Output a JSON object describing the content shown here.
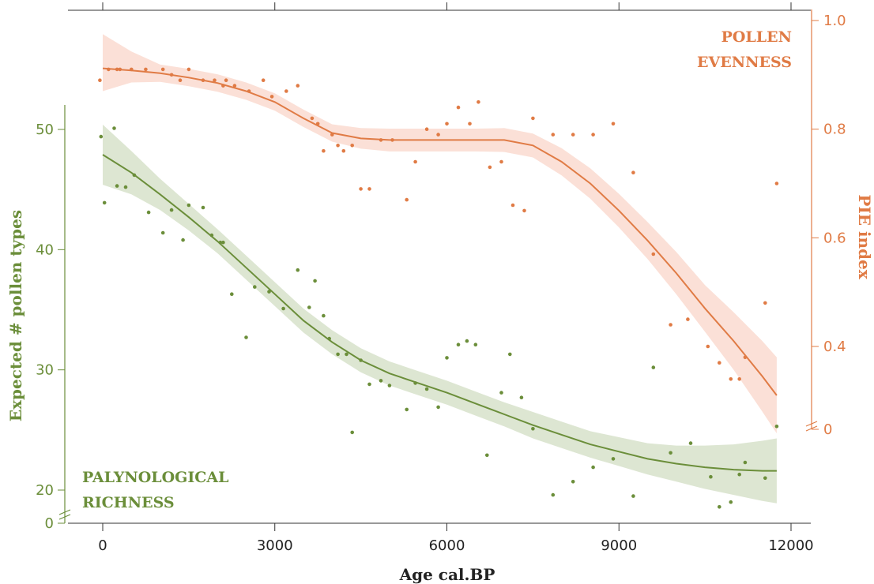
{
  "chart_data": {
    "type": "scatter",
    "x_axis": {
      "label": "Age cal.BP",
      "range": [
        -300,
        12300
      ],
      "ticks": [
        0,
        3000,
        6000,
        9000,
        12000
      ],
      "tick_labels": [
        "0",
        "3000",
        "6000",
        "9000",
        "12000"
      ]
    },
    "y_left": {
      "label": "Expected # pollen types",
      "range": [
        19,
        52
      ],
      "ticks": [
        20,
        30,
        40,
        50
      ],
      "tick_labels": [
        "20",
        "30",
        "40",
        "50"
      ],
      "break_label": "0",
      "color": "#6b8e3a"
    },
    "y_right": {
      "label": "PIE index",
      "range": [
        0.3,
        1.0
      ],
      "ticks": [
        0.4,
        0.6,
        0.8,
        1.0
      ],
      "tick_labels": [
        "0.4",
        "0.6",
        "0.8",
        "1.0"
      ],
      "break_label": "0",
      "color": "#e07b45"
    },
    "series": [
      {
        "name": "PALYNOLOGICAL RICHNESS",
        "name_lines": [
          "PALYNOLOGICAL",
          "RICHNESS"
        ],
        "axis": "left",
        "color": "#6b8e3a",
        "band_color": "#dde6d2",
        "points": [
          [
            -30,
            49.4
          ],
          [
            30,
            43.9
          ],
          [
            200,
            50.1
          ],
          [
            250,
            45.3
          ],
          [
            400,
            45.2
          ],
          [
            550,
            46.2
          ],
          [
            800,
            43.1
          ],
          [
            1050,
            41.4
          ],
          [
            1200,
            43.3
          ],
          [
            1400,
            40.8
          ],
          [
            1500,
            43.7
          ],
          [
            1750,
            43.5
          ],
          [
            1900,
            41.2
          ],
          [
            2050,
            40.6
          ],
          [
            2100,
            40.6
          ],
          [
            2250,
            36.3
          ],
          [
            2500,
            32.7
          ],
          [
            2650,
            36.9
          ],
          [
            2900,
            36.5
          ],
          [
            3150,
            35.1
          ],
          [
            3400,
            38.3
          ],
          [
            3600,
            35.2
          ],
          [
            3700,
            37.4
          ],
          [
            3850,
            34.5
          ],
          [
            3950,
            32.6
          ],
          [
            4100,
            31.3
          ],
          [
            4250,
            31.3
          ],
          [
            4350,
            24.8
          ],
          [
            4500,
            30.8
          ],
          [
            4650,
            28.8
          ],
          [
            4850,
            29.1
          ],
          [
            5000,
            28.7
          ],
          [
            5300,
            26.7
          ],
          [
            5450,
            28.9
          ],
          [
            5650,
            28.4
          ],
          [
            5850,
            26.9
          ],
          [
            6000,
            31.0
          ],
          [
            6200,
            32.1
          ],
          [
            6350,
            32.4
          ],
          [
            6500,
            32.1
          ],
          [
            6700,
            22.9
          ],
          [
            6950,
            28.1
          ],
          [
            7100,
            31.3
          ],
          [
            7300,
            27.7
          ],
          [
            7500,
            25.1
          ],
          [
            7850,
            19.6
          ],
          [
            8200,
            20.7
          ],
          [
            8550,
            21.9
          ],
          [
            8900,
            22.6
          ],
          [
            9250,
            19.5
          ],
          [
            9600,
            30.2
          ],
          [
            9900,
            23.1
          ],
          [
            10250,
            23.9
          ],
          [
            10600,
            21.1
          ],
          [
            10750,
            18.6
          ],
          [
            10950,
            19.0
          ],
          [
            11100,
            21.3
          ],
          [
            11200,
            22.3
          ],
          [
            11550,
            21.0
          ],
          [
            11750,
            25.3
          ]
        ],
        "fit": [
          [
            0,
            47.9
          ],
          [
            500,
            46.4
          ],
          [
            1000,
            44.6
          ],
          [
            1500,
            42.7
          ],
          [
            2000,
            40.7
          ],
          [
            2500,
            38.5
          ],
          [
            3000,
            36.3
          ],
          [
            3500,
            34.1
          ],
          [
            4000,
            32.3
          ],
          [
            4500,
            30.8
          ],
          [
            5000,
            29.7
          ],
          [
            5500,
            28.9
          ],
          [
            6000,
            28.1
          ],
          [
            6500,
            27.2
          ],
          [
            7000,
            26.3
          ],
          [
            7500,
            25.4
          ],
          [
            8000,
            24.6
          ],
          [
            8500,
            23.8
          ],
          [
            9000,
            23.2
          ],
          [
            9500,
            22.6
          ],
          [
            10000,
            22.2
          ],
          [
            10500,
            21.9
          ],
          [
            11000,
            21.7
          ],
          [
            11500,
            21.6
          ],
          [
            11750,
            21.6
          ]
        ],
        "band": [
          [
            0,
            45.4,
            50.4
          ],
          [
            500,
            44.6,
            48.2
          ],
          [
            1000,
            43.3,
            45.9
          ],
          [
            1500,
            41.6,
            43.8
          ],
          [
            2000,
            39.7,
            41.7
          ],
          [
            2500,
            37.5,
            39.5
          ],
          [
            3000,
            35.3,
            37.3
          ],
          [
            3500,
            33.1,
            35.1
          ],
          [
            4000,
            31.3,
            33.3
          ],
          [
            4500,
            29.8,
            31.8
          ],
          [
            5000,
            28.7,
            30.7
          ],
          [
            5500,
            27.9,
            29.9
          ],
          [
            6000,
            27.1,
            29.1
          ],
          [
            6500,
            26.2,
            28.2
          ],
          [
            7000,
            25.3,
            27.3
          ],
          [
            7500,
            24.3,
            26.5
          ],
          [
            8000,
            23.5,
            25.7
          ],
          [
            8500,
            22.7,
            24.9
          ],
          [
            9000,
            22.0,
            24.4
          ],
          [
            9500,
            21.3,
            23.9
          ],
          [
            10000,
            20.7,
            23.7
          ],
          [
            10500,
            20.1,
            23.7
          ],
          [
            11000,
            19.6,
            23.8
          ],
          [
            11500,
            19.1,
            24.1
          ],
          [
            11750,
            18.9,
            24.3
          ]
        ]
      },
      {
        "name": "POLLEN EVENNESS",
        "name_lines": [
          "POLLEN",
          "EVENNESS"
        ],
        "axis": "right",
        "color": "#e07b45",
        "band_color": "#fbe0d7",
        "points": [
          [
            -50,
            0.89
          ],
          [
            100,
            0.91
          ],
          [
            250,
            0.91
          ],
          [
            300,
            0.91
          ],
          [
            500,
            0.91
          ],
          [
            750,
            0.91
          ],
          [
            1050,
            0.91
          ],
          [
            1200,
            0.9
          ],
          [
            1350,
            0.89
          ],
          [
            1500,
            0.91
          ],
          [
            1750,
            0.89
          ],
          [
            1950,
            0.89
          ],
          [
            2100,
            0.88
          ],
          [
            2150,
            0.89
          ],
          [
            2300,
            0.88
          ],
          [
            2550,
            0.87
          ],
          [
            2800,
            0.89
          ],
          [
            2950,
            0.86
          ],
          [
            3200,
            0.87
          ],
          [
            3400,
            0.88
          ],
          [
            3650,
            0.82
          ],
          [
            3750,
            0.81
          ],
          [
            3850,
            0.76
          ],
          [
            4000,
            0.79
          ],
          [
            4100,
            0.77
          ],
          [
            4200,
            0.76
          ],
          [
            4350,
            0.77
          ],
          [
            4500,
            0.69
          ],
          [
            4650,
            0.69
          ],
          [
            4850,
            0.78
          ],
          [
            5050,
            0.78
          ],
          [
            5300,
            0.67
          ],
          [
            5450,
            0.74
          ],
          [
            5650,
            0.8
          ],
          [
            5850,
            0.79
          ],
          [
            6000,
            0.81
          ],
          [
            6200,
            0.84
          ],
          [
            6400,
            0.81
          ],
          [
            6550,
            0.85
          ],
          [
            6750,
            0.73
          ],
          [
            6950,
            0.74
          ],
          [
            7150,
            0.66
          ],
          [
            7350,
            0.65
          ],
          [
            7500,
            0.82
          ],
          [
            7850,
            0.79
          ],
          [
            8200,
            0.79
          ],
          [
            8550,
            0.79
          ],
          [
            8900,
            0.81
          ],
          [
            9250,
            0.72
          ],
          [
            9600,
            0.57
          ],
          [
            9900,
            0.44
          ],
          [
            10200,
            0.45
          ],
          [
            10550,
            0.4
          ],
          [
            10750,
            0.37
          ],
          [
            10950,
            0.34
          ],
          [
            11100,
            0.34
          ],
          [
            11200,
            0.38
          ],
          [
            11550,
            0.48
          ],
          [
            11750,
            0.7
          ]
        ],
        "fit": [
          [
            0,
            0.912
          ],
          [
            500,
            0.908
          ],
          [
            1000,
            0.903
          ],
          [
            1500,
            0.895
          ],
          [
            2000,
            0.885
          ],
          [
            2500,
            0.87
          ],
          [
            3000,
            0.85
          ],
          [
            3500,
            0.82
          ],
          [
            4000,
            0.793
          ],
          [
            4500,
            0.783
          ],
          [
            5000,
            0.78
          ],
          [
            5500,
            0.78
          ],
          [
            6000,
            0.78
          ],
          [
            6500,
            0.78
          ],
          [
            7000,
            0.78
          ],
          [
            7500,
            0.77
          ],
          [
            8000,
            0.74
          ],
          [
            8500,
            0.7
          ],
          [
            9000,
            0.65
          ],
          [
            9500,
            0.595
          ],
          [
            10000,
            0.535
          ],
          [
            10500,
            0.47
          ],
          [
            11000,
            0.41
          ],
          [
            11500,
            0.345
          ],
          [
            11750,
            0.31
          ]
        ],
        "band": [
          [
            0,
            0.87,
            0.975
          ],
          [
            500,
            0.886,
            0.943
          ],
          [
            1000,
            0.887,
            0.919
          ],
          [
            1500,
            0.879,
            0.911
          ],
          [
            2000,
            0.869,
            0.901
          ],
          [
            2500,
            0.854,
            0.886
          ],
          [
            3000,
            0.834,
            0.866
          ],
          [
            3500,
            0.804,
            0.836
          ],
          [
            4000,
            0.777,
            0.809
          ],
          [
            4500,
            0.764,
            0.802
          ],
          [
            5000,
            0.759,
            0.801
          ],
          [
            5500,
            0.759,
            0.801
          ],
          [
            6000,
            0.759,
            0.801
          ],
          [
            6500,
            0.759,
            0.801
          ],
          [
            7000,
            0.758,
            0.802
          ],
          [
            7500,
            0.748,
            0.792
          ],
          [
            8000,
            0.715,
            0.765
          ],
          [
            8500,
            0.672,
            0.728
          ],
          [
            9000,
            0.619,
            0.681
          ],
          [
            9500,
            0.561,
            0.629
          ],
          [
            10000,
            0.496,
            0.574
          ],
          [
            10500,
            0.427,
            0.513
          ],
          [
            11000,
            0.357,
            0.463
          ],
          [
            11500,
            0.28,
            0.41
          ],
          [
            11750,
            0.24,
            0.38
          ]
        ]
      }
    ]
  }
}
